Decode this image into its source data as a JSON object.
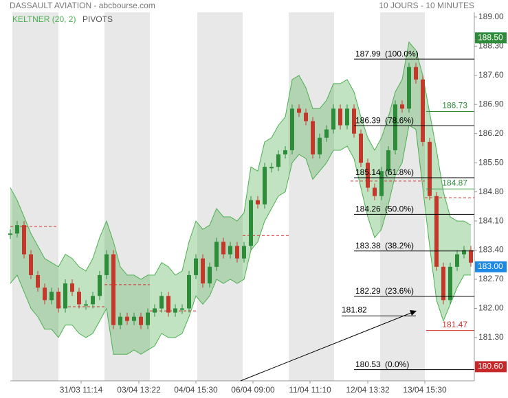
{
  "chart_data": {
    "type": "candlestick",
    "title": "DASSAULT AVIATION - abcbourse.com",
    "subtitle": "10 JOURS - 10 MINUTES",
    "pivots_label": "PIVOTS",
    "xlim": [
      0,
      67.5
    ],
    "xticks": [
      {
        "value": 10.3,
        "label": "31/03 11:14"
      },
      {
        "value": 18.7,
        "label": "03/04 13:22"
      },
      {
        "value": 27,
        "label": "04/04 15:30"
      },
      {
        "value": 35.3,
        "label": "06/04 09:00"
      },
      {
        "value": 43.6,
        "label": "11/04 11:10"
      },
      {
        "value": 52,
        "label": "12/04 13:32"
      },
      {
        "value": 60.3,
        "label": "13/04 15:30"
      }
    ],
    "ylim": [
      180.26,
      189.41
    ],
    "yticks": [
      {
        "value": 189,
        "label": "189.00"
      },
      {
        "value": 188.3,
        "label": "188.30"
      },
      {
        "value": 187.6,
        "label": "187.60"
      },
      {
        "value": 186.9,
        "label": "186.90"
      },
      {
        "value": 186.2,
        "label": "186.20"
      },
      {
        "value": 185.5,
        "label": "185.50"
      },
      {
        "value": 184.8,
        "label": "184.80"
      },
      {
        "value": 184.1,
        "label": "184.10"
      },
      {
        "value": 183.4,
        "label": "183.40"
      },
      {
        "value": 182.7,
        "label": "182.70"
      },
      {
        "value": 182,
        "label": "182.00"
      },
      {
        "value": 181.3,
        "label": "181.30"
      }
    ],
    "close": {
      "up_color": "#2e8b3a",
      "down_color": "#c0392b",
      "values": [
        183.8,
        184.0,
        183.3,
        182.8,
        182.5,
        182.2,
        182.4,
        182.0,
        182.6,
        182.4,
        182.1,
        182.1,
        182.3,
        182.8,
        183.3,
        181.6,
        181.8,
        181.7,
        181.8,
        181.6,
        181.9,
        182.0,
        182.3,
        181.9,
        182.0,
        182.0,
        182.8,
        183.2,
        182.6,
        183.0,
        183.6,
        183.3,
        183.5,
        183.2,
        183.5,
        184.6,
        184.5,
        185.4,
        185.4,
        185.7,
        185.8,
        186.8,
        186.7,
        186.5,
        185.7,
        186.1,
        186.3,
        186.8,
        186.4,
        186.8,
        186.2,
        185.5,
        184.9,
        184.7,
        185.3,
        185.8,
        186.9,
        186.8,
        187.8,
        187.5,
        186.0,
        184.7,
        183.0,
        182.2,
        183.0,
        183.3,
        183.4,
        183.1
      ]
    },
    "keltner": {
      "label": "KELTNER (20, 2)",
      "color": "#4caf50",
      "upper": [
        184.9,
        184.6,
        184.2,
        183.8,
        183.5,
        183.2,
        183.1,
        183.0,
        183.3,
        183.2,
        183.0,
        182.9,
        183.2,
        183.7,
        184.1,
        183.6,
        183.0,
        182.8,
        182.8,
        182.7,
        182.8,
        182.8,
        183.1,
        183.0,
        182.8,
        182.9,
        183.6,
        184.1,
        183.9,
        184.0,
        184.4,
        184.2,
        184.2,
        184.1,
        184.3,
        185.4,
        185.3,
        186.0,
        186.1,
        186.4,
        186.6,
        187.5,
        187.6,
        187.3,
        186.8,
        186.8,
        187.0,
        187.4,
        187.4,
        187.5,
        187.2,
        186.6,
        186.1,
        185.8,
        186.1,
        186.6,
        187.2,
        187.5,
        188.4,
        188.2,
        187.6,
        186.7,
        185.8,
        184.8,
        184.2,
        184.1,
        184.1,
        184.0
      ],
      "lower": [
        182.6,
        182.8,
        182.4,
        182.0,
        181.8,
        181.5,
        181.5,
        181.3,
        181.6,
        181.6,
        181.4,
        181.3,
        181.4,
        181.7,
        182.0,
        180.9,
        180.9,
        180.9,
        181.0,
        180.9,
        181.0,
        181.1,
        181.4,
        181.3,
        181.3,
        181.4,
        181.8,
        182.3,
        182.1,
        182.3,
        182.7,
        182.6,
        182.7,
        182.6,
        182.7,
        183.4,
        183.6,
        184.1,
        184.4,
        184.7,
        184.8,
        185.5,
        185.7,
        185.6,
        185.1,
        185.3,
        185.5,
        185.8,
        185.8,
        185.9,
        185.6,
        184.9,
        184.2,
        183.7,
        183.9,
        184.5,
        185.2,
        185.5,
        186.4,
        186.3,
        184.9,
        183.5,
        182.2,
        181.7,
        182.1,
        182.5,
        182.8,
        182.8
      ]
    },
    "pivot_segments": [
      {
        "from": 0,
        "to": 7,
        "value": 183.97
      },
      {
        "from": 7,
        "to": 13.7,
        "value": 182.04
      },
      {
        "from": 13.7,
        "to": 20.3,
        "value": 182.57
      },
      {
        "from": 20.3,
        "to": 27,
        "value": 181.94
      },
      {
        "from": 33.8,
        "to": 40.5,
        "value": 183.75
      },
      {
        "from": 49.5,
        "to": 60.3,
        "value": 185.06
      },
      {
        "from": 60.3,
        "to": 67.5,
        "value": 184.66
      }
    ],
    "pivot_levels": [
      {
        "value": 186.73,
        "color": "#2e8b3a"
      },
      {
        "value": 184.87,
        "color": "#2e8b3a"
      },
      {
        "value": 181.47,
        "color": "#d32f2f"
      }
    ],
    "fibonacci": [
      {
        "value": 187.99,
        "pct": "(100.0%)"
      },
      {
        "value": 186.39,
        "pct": "(78.6%)"
      },
      {
        "value": 185.14,
        "pct": "(61.8%)"
      },
      {
        "value": 184.26,
        "pct": "(50.0%)"
      },
      {
        "value": 183.38,
        "pct": "(38.2%)"
      },
      {
        "value": 182.29,
        "pct": "(23.6%)"
      },
      {
        "value": 180.53,
        "pct": "(0.0%)"
      }
    ],
    "support": 181.82,
    "price_markers": [
      {
        "value": 188.5,
        "label": "188.50",
        "color": "#2e8b3a"
      },
      {
        "value": 183,
        "label": "183.00",
        "color": "#1e88e5"
      },
      {
        "value": 180.6,
        "label": "180.60",
        "color": "#c62828"
      }
    ]
  }
}
